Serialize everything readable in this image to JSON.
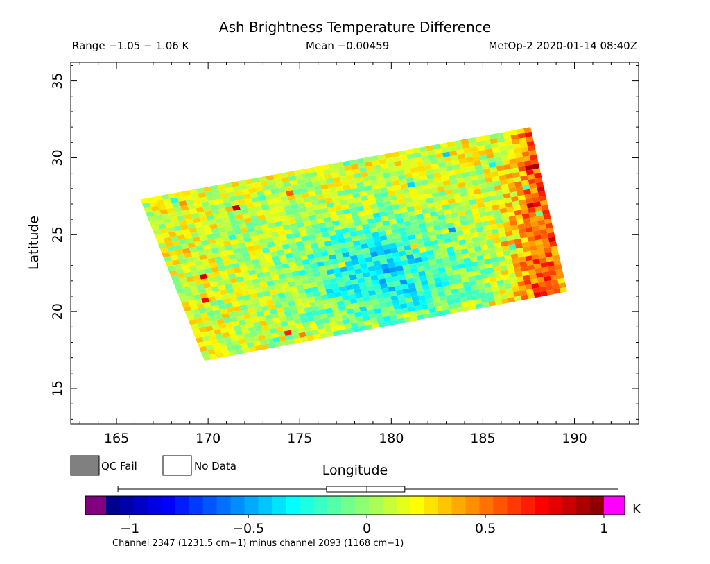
{
  "chart_data": {
    "type": "heatmap",
    "title": "Ash Brightness Temperature Difference",
    "stats": {
      "range": "Range −1.05 − 1.06 K",
      "mean": "Mean −0.00459",
      "source": "MetOp-2 2020-01-14 08:40Z"
    },
    "xlabel": "Longitude",
    "ylabel": "Latitude",
    "xlim": [
      162.5,
      193.5
    ],
    "ylim": [
      12.7,
      36.2
    ],
    "xticks": [
      165,
      170,
      175,
      180,
      185,
      190
    ],
    "yticks": [
      15,
      20,
      25,
      30,
      35
    ],
    "xtick_labels": [
      "165",
      "170",
      "175",
      "180",
      "185",
      "190"
    ],
    "ytick_labels": [
      "15",
      "20",
      "25",
      "30",
      "35"
    ],
    "swath_corners": [
      [
        166.3,
        27.3
      ],
      [
        187.6,
        32.0
      ],
      [
        189.6,
        21.3
      ],
      [
        169.8,
        16.8
      ]
    ],
    "field": {
      "rows": 36,
      "cols": 56,
      "value_range": [
        -1.05,
        1.06
      ],
      "mean": -0.00459,
      "low_center": [
        179.5,
        22.5
      ],
      "high_region": "east edge, near longitude 187-189"
    },
    "legend": {
      "qc_fail_label": "QC Fail",
      "no_data_label": "No Data",
      "qc_fail_color": "#808080",
      "no_data_color": "#ffffff"
    },
    "colorbar": {
      "min": -1.1,
      "max": 1.0,
      "ticks": [
        -1,
        -0.5,
        0,
        0.5,
        1
      ],
      "tick_labels": [
        "−1",
        "−0.5",
        "0",
        "0.5",
        "1"
      ],
      "unit": "K",
      "under_color": "#800080",
      "over_color": "#ff00ff",
      "boxplot": {
        "min": -1.05,
        "q1": -0.17,
        "median": 0.0,
        "q3": 0.16,
        "max": 1.06
      },
      "caption": "Channel 2347 (1231.5 cm−1) minus channel 2093 (1168 cm−1)"
    }
  }
}
